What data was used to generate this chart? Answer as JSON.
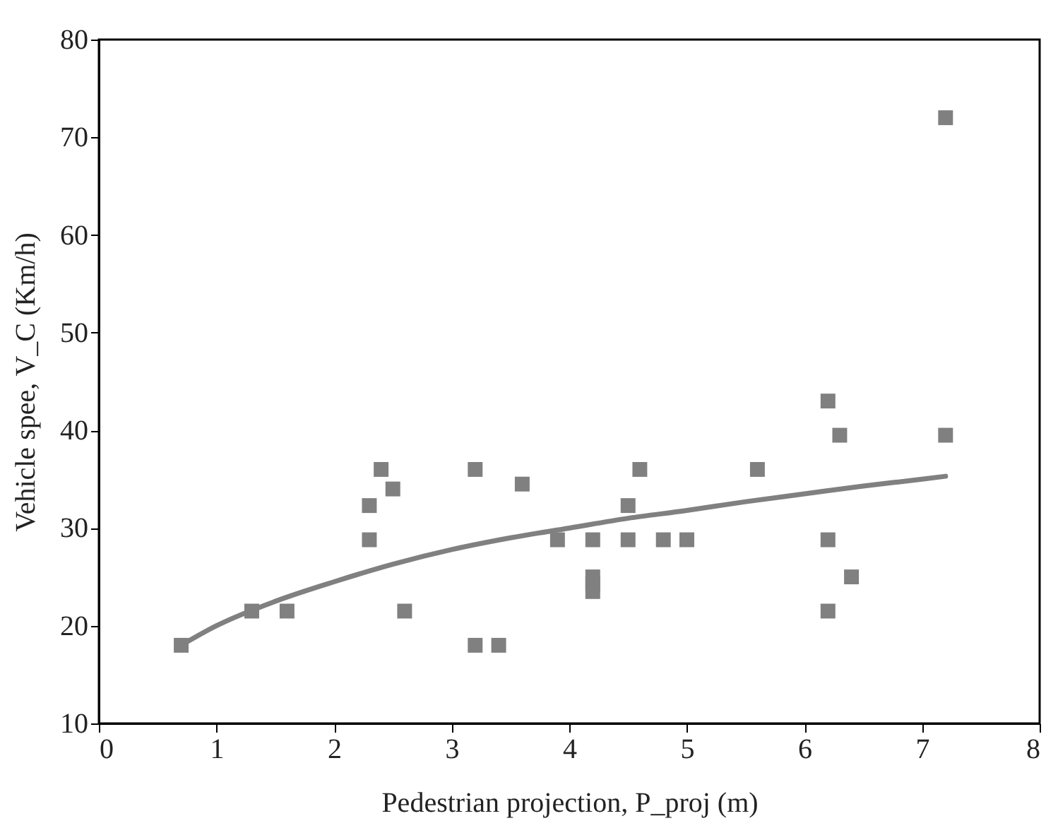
{
  "chart_data": {
    "type": "scatter",
    "xlabel": "Pedestrian projection, P_proj (m)",
    "ylabel": "Vehicle spee, V_C (Km/h)",
    "xlim": [
      0,
      8
    ],
    "xticks": [
      0,
      1,
      2,
      3,
      4,
      5,
      6,
      7,
      8
    ],
    "ylim": [
      10,
      80
    ],
    "yticks": [
      10,
      20,
      30,
      40,
      50,
      60,
      70,
      80
    ],
    "grid": false,
    "series": [
      {
        "marker": "square",
        "color": "#808080",
        "x": [
          0.7,
          1.3,
          1.6,
          2.3,
          2.3,
          2.4,
          2.5,
          2.6,
          3.2,
          3.2,
          3.4,
          3.6,
          3.9,
          4.2,
          4.2,
          4.2,
          4.2,
          4.5,
          4.5,
          4.6,
          4.8,
          5.0,
          5.6,
          6.2,
          6.2,
          6.2,
          6.3,
          6.4,
          7.2,
          7.2
        ],
        "values": [
          18,
          21.5,
          21.5,
          32.3,
          28.8,
          36,
          34,
          21.5,
          36,
          18,
          18,
          34.5,
          28.8,
          28.8,
          25,
          24.3,
          23.5,
          32.3,
          28.8,
          36,
          28.8,
          28.8,
          36,
          43,
          28.8,
          21.5,
          39.5,
          25,
          72,
          39.5
        ]
      },
      {
        "type": "line",
        "marker": "none",
        "line_style": "solid",
        "color": "#808080",
        "x": [
          0.7,
          1.0,
          1.5,
          2.0,
          2.5,
          3.0,
          3.5,
          4.0,
          4.5,
          5.0,
          5.5,
          6.0,
          6.5,
          7.0,
          7.2
        ],
        "values": [
          18,
          20,
          22.5,
          24.5,
          26.3,
          27.8,
          29,
          30,
          31,
          31.8,
          32.7,
          33.5,
          34.3,
          35,
          35.3
        ]
      }
    ]
  }
}
